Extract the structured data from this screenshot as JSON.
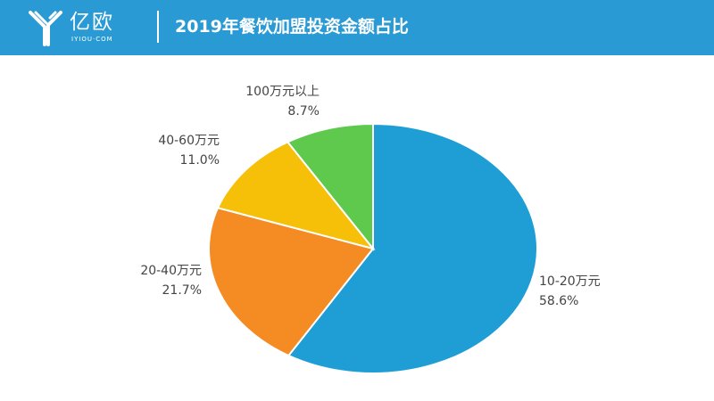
{
  "header": {
    "logo_cn": "亿欧",
    "logo_en": "IYIOU·COM",
    "title": "2019年餐饮加盟投资金额占比"
  },
  "colors": {
    "header_bg": "#2a9ad4",
    "text": "#444444"
  },
  "chart_data": {
    "type": "pie",
    "title": "2019年餐饮加盟投资金额占比",
    "slices": [
      {
        "label": "10-20万元",
        "value": 58.6,
        "display": "58.6%",
        "color": "#1f9ed6"
      },
      {
        "label": "20-40万元",
        "value": 21.7,
        "display": "21.7%",
        "color": "#f58b23"
      },
      {
        "label": "40-60万元",
        "value": 11.0,
        "display": "11.0%",
        "color": "#f6bf08"
      },
      {
        "label": "100万元以上",
        "value": 8.7,
        "display": "8.7%",
        "color": "#5fc94d"
      }
    ],
    "start": "12 o'clock",
    "direction": "clockwise",
    "legend": "none"
  }
}
